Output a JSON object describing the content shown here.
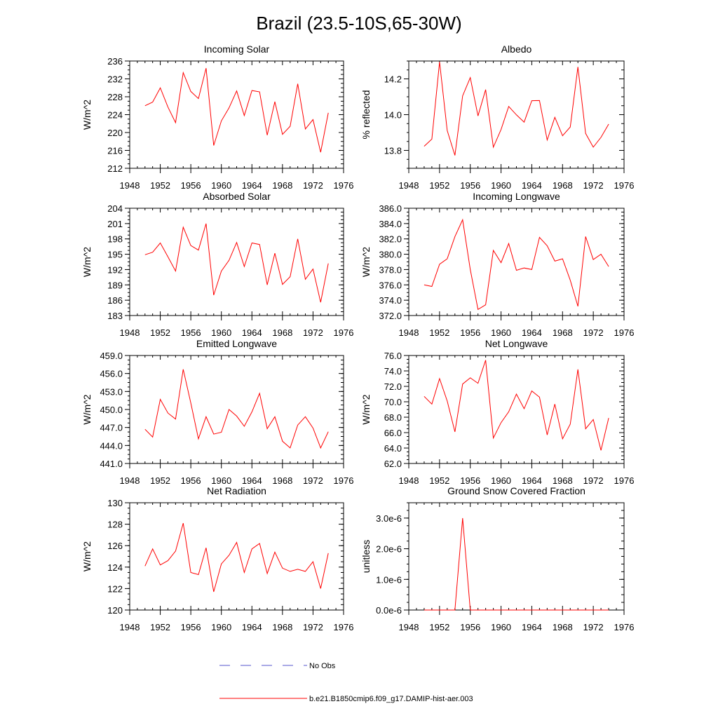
{
  "figure": {
    "title": "Brazil (23.5-10S,65-30W)",
    "legend": [
      {
        "label": "No Obs",
        "style": "dashed",
        "color": "#5555cc"
      },
      {
        "label": "b.e21.B1850cmip6.f09_g17.DAMIP-hist-aer.003",
        "style": "solid",
        "color": "#ff0000"
      }
    ]
  },
  "chart_data": [
    {
      "type": "line",
      "title": "Incoming Solar",
      "ylabel": "W/m^2",
      "xlim": [
        1948,
        1976
      ],
      "ylim": [
        212,
        236
      ],
      "yticks": [
        "212",
        "216",
        "220",
        "224",
        "228",
        "232",
        "236"
      ],
      "xticks": [
        "1948",
        "1952",
        "1956",
        "1960",
        "1964",
        "1968",
        "1972",
        "1976"
      ],
      "series": [
        {
          "color": "#ff0000",
          "x": [
            1950,
            1951,
            1952,
            1953,
            1954,
            1955,
            1956,
            1957,
            1958,
            1959,
            1960,
            1961,
            1962,
            1963,
            1964,
            1965,
            1966,
            1967,
            1968,
            1969,
            1970,
            1971,
            1972,
            1973,
            1974
          ],
          "y": [
            226.0,
            226.8,
            230.0,
            225.7,
            222.2,
            233.4,
            229.2,
            227.6,
            234.4,
            217.1,
            222.6,
            225.5,
            229.3,
            223.8,
            229.4,
            229.1,
            219.4,
            226.9,
            219.6,
            221.4,
            230.9,
            220.8,
            222.9,
            215.6,
            224.4
          ]
        }
      ]
    },
    {
      "type": "line",
      "title": "Albedo",
      "ylabel": "% reflected",
      "xlim": [
        1948,
        1976
      ],
      "ylim": [
        13.7,
        14.3
      ],
      "yticks": [
        "13.8",
        "14.0",
        "14.2"
      ],
      "xticks": [
        "1948",
        "1952",
        "1956",
        "1960",
        "1964",
        "1968",
        "1972",
        "1976"
      ],
      "series": [
        {
          "color": "#ff0000",
          "x": [
            1950,
            1951,
            1952,
            1953,
            1954,
            1955,
            1956,
            1957,
            1958,
            1959,
            1960,
            1961,
            1962,
            1963,
            1964,
            1965,
            1966,
            1967,
            1968,
            1969,
            1970,
            1971,
            1972,
            1973,
            1974
          ],
          "y": [
            13.823,
            13.863,
            14.295,
            13.911,
            13.772,
            14.105,
            14.207,
            13.993,
            14.14,
            13.818,
            13.917,
            14.046,
            13.999,
            13.958,
            14.078,
            14.079,
            13.858,
            13.985,
            13.882,
            13.931,
            14.267,
            13.895,
            13.818,
            13.873,
            13.947
          ]
        }
      ]
    },
    {
      "type": "line",
      "title": "Absorbed Solar",
      "ylabel": "W/m^2",
      "xlim": [
        1948,
        1976
      ],
      "ylim": [
        183,
        204
      ],
      "yticks": [
        "183",
        "186",
        "189",
        "192",
        "195",
        "198",
        "201",
        "204"
      ],
      "xticks": [
        "1948",
        "1952",
        "1956",
        "1960",
        "1964",
        "1968",
        "1972",
        "1976"
      ],
      "series": [
        {
          "color": "#ff0000",
          "x": [
            1950,
            1951,
            1952,
            1953,
            1954,
            1955,
            1956,
            1957,
            1958,
            1959,
            1960,
            1961,
            1962,
            1963,
            1964,
            1965,
            1966,
            1967,
            1968,
            1969,
            1970,
            1971,
            1972,
            1973,
            1974
          ],
          "y": [
            194.9,
            195.4,
            197.2,
            194.5,
            191.7,
            200.3,
            196.7,
            195.8,
            201.0,
            187.0,
            191.7,
            193.8,
            197.3,
            192.6,
            197.2,
            196.9,
            189.0,
            195.2,
            189.1,
            190.6,
            198.0,
            190.1,
            192.1,
            185.6,
            193.2
          ]
        }
      ]
    },
    {
      "type": "line",
      "title": "Incoming Longwave",
      "ylabel": "W/m^2",
      "xlim": [
        1948,
        1976
      ],
      "ylim": [
        372,
        386
      ],
      "yticks": [
        "372.0",
        "374.0",
        "376.0",
        "378.0",
        "380.0",
        "382.0",
        "384.0",
        "386.0"
      ],
      "xticks": [
        "1948",
        "1952",
        "1956",
        "1960",
        "1964",
        "1968",
        "1972",
        "1976"
      ],
      "series": [
        {
          "color": "#ff0000",
          "x": [
            1950,
            1951,
            1952,
            1953,
            1954,
            1955,
            1956,
            1957,
            1958,
            1959,
            1960,
            1961,
            1962,
            1963,
            1964,
            1965,
            1966,
            1967,
            1968,
            1969,
            1970,
            1971,
            1972,
            1973,
            1974
          ],
          "y": [
            376.0,
            375.8,
            378.7,
            379.4,
            382.3,
            384.5,
            378.0,
            372.8,
            373.4,
            380.5,
            378.9,
            381.4,
            377.9,
            378.2,
            378.0,
            382.2,
            381.1,
            379.1,
            379.4,
            376.6,
            373.2,
            382.3,
            379.3,
            380.0,
            378.4
          ]
        }
      ]
    },
    {
      "type": "line",
      "title": "Emitted Longwave",
      "ylabel": "W/m^2",
      "xlim": [
        1948,
        1976
      ],
      "ylim": [
        441,
        459
      ],
      "yticks": [
        "441.0",
        "444.0",
        "447.0",
        "450.0",
        "453.0",
        "456.0",
        "459.0"
      ],
      "xticks": [
        "1948",
        "1952",
        "1956",
        "1960",
        "1964",
        "1968",
        "1972",
        "1976"
      ],
      "series": [
        {
          "color": "#ff0000",
          "x": [
            1950,
            1951,
            1952,
            1953,
            1954,
            1955,
            1956,
            1957,
            1958,
            1959,
            1960,
            1961,
            1962,
            1963,
            1964,
            1965,
            1966,
            1967,
            1968,
            1969,
            1970,
            1971,
            1972,
            1973,
            1974
          ],
          "y": [
            446.7,
            445.4,
            451.7,
            449.4,
            448.4,
            456.7,
            451.1,
            445.1,
            448.8,
            445.9,
            446.2,
            450.0,
            448.9,
            447.2,
            449.6,
            452.7,
            446.8,
            448.8,
            444.7,
            443.6,
            447.4,
            448.8,
            446.9,
            443.6,
            446.3
          ]
        }
      ]
    },
    {
      "type": "line",
      "title": "Net Longwave",
      "ylabel": "W/m^2",
      "xlim": [
        1948,
        1976
      ],
      "ylim": [
        62,
        76
      ],
      "yticks": [
        "62.0",
        "64.0",
        "66.0",
        "68.0",
        "70.0",
        "72.0",
        "74.0",
        "76.0"
      ],
      "xticks": [
        "1948",
        "1952",
        "1956",
        "1960",
        "1964",
        "1968",
        "1972",
        "1976"
      ],
      "series": [
        {
          "color": "#ff0000",
          "x": [
            1950,
            1951,
            1952,
            1953,
            1954,
            1955,
            1956,
            1957,
            1958,
            1959,
            1960,
            1961,
            1962,
            1963,
            1964,
            1965,
            1966,
            1967,
            1968,
            1969,
            1970,
            1971,
            1972,
            1973,
            1974
          ],
          "y": [
            70.7,
            69.7,
            73.0,
            70.1,
            66.1,
            72.3,
            73.1,
            72.4,
            75.4,
            65.3,
            67.3,
            68.7,
            71.0,
            69.1,
            71.4,
            70.6,
            65.7,
            69.7,
            65.2,
            67.1,
            74.2,
            66.5,
            67.7,
            63.7,
            67.9
          ]
        }
      ]
    },
    {
      "type": "line",
      "title": "Net Radiation",
      "ylabel": "W/m^2",
      "xlim": [
        1948,
        1976
      ],
      "ylim": [
        120,
        130
      ],
      "yticks": [
        "120",
        "122",
        "124",
        "126",
        "128",
        "130"
      ],
      "xticks": [
        "1948",
        "1952",
        "1956",
        "1960",
        "1964",
        "1968",
        "1972",
        "1976"
      ],
      "series": [
        {
          "color": "#ff0000",
          "x": [
            1950,
            1951,
            1952,
            1953,
            1954,
            1955,
            1956,
            1957,
            1958,
            1959,
            1960,
            1961,
            1962,
            1963,
            1964,
            1965,
            1966,
            1967,
            1968,
            1969,
            1970,
            1971,
            1972,
            1973,
            1974
          ],
          "y": [
            124.1,
            125.7,
            124.2,
            124.6,
            125.5,
            128.1,
            123.5,
            123.3,
            125.8,
            121.7,
            124.3,
            125.1,
            126.3,
            123.5,
            125.7,
            126.2,
            123.4,
            125.4,
            123.9,
            123.6,
            123.8,
            123.6,
            124.5,
            122.0,
            125.3
          ]
        }
      ]
    },
    {
      "type": "line",
      "title": "Ground Snow Covered Fraction",
      "ylabel": "unitless",
      "xlim": [
        1948,
        1976
      ],
      "ylim": [
        0,
        3.5e-06
      ],
      "yticks": [
        "0.0e-6",
        "1.0e-6",
        "2.0e-6",
        "3.0e-6"
      ],
      "xticks": [
        "1948",
        "1952",
        "1956",
        "1960",
        "1964",
        "1968",
        "1972",
        "1976"
      ],
      "series": [
        {
          "color": "#ff0000",
          "x": [
            1950,
            1951,
            1952,
            1953,
            1954,
            1955,
            1956,
            1957,
            1958,
            1959,
            1960,
            1961,
            1962,
            1963,
            1964,
            1965,
            1966,
            1967,
            1968,
            1969,
            1970,
            1971,
            1972,
            1973,
            1974
          ],
          "y": [
            0,
            0,
            0,
            0,
            0,
            3e-06,
            0,
            0,
            0,
            0,
            0,
            0,
            0,
            0,
            0,
            0,
            0,
            0,
            0,
            0,
            0,
            0,
            0,
            0,
            0
          ]
        }
      ]
    }
  ]
}
